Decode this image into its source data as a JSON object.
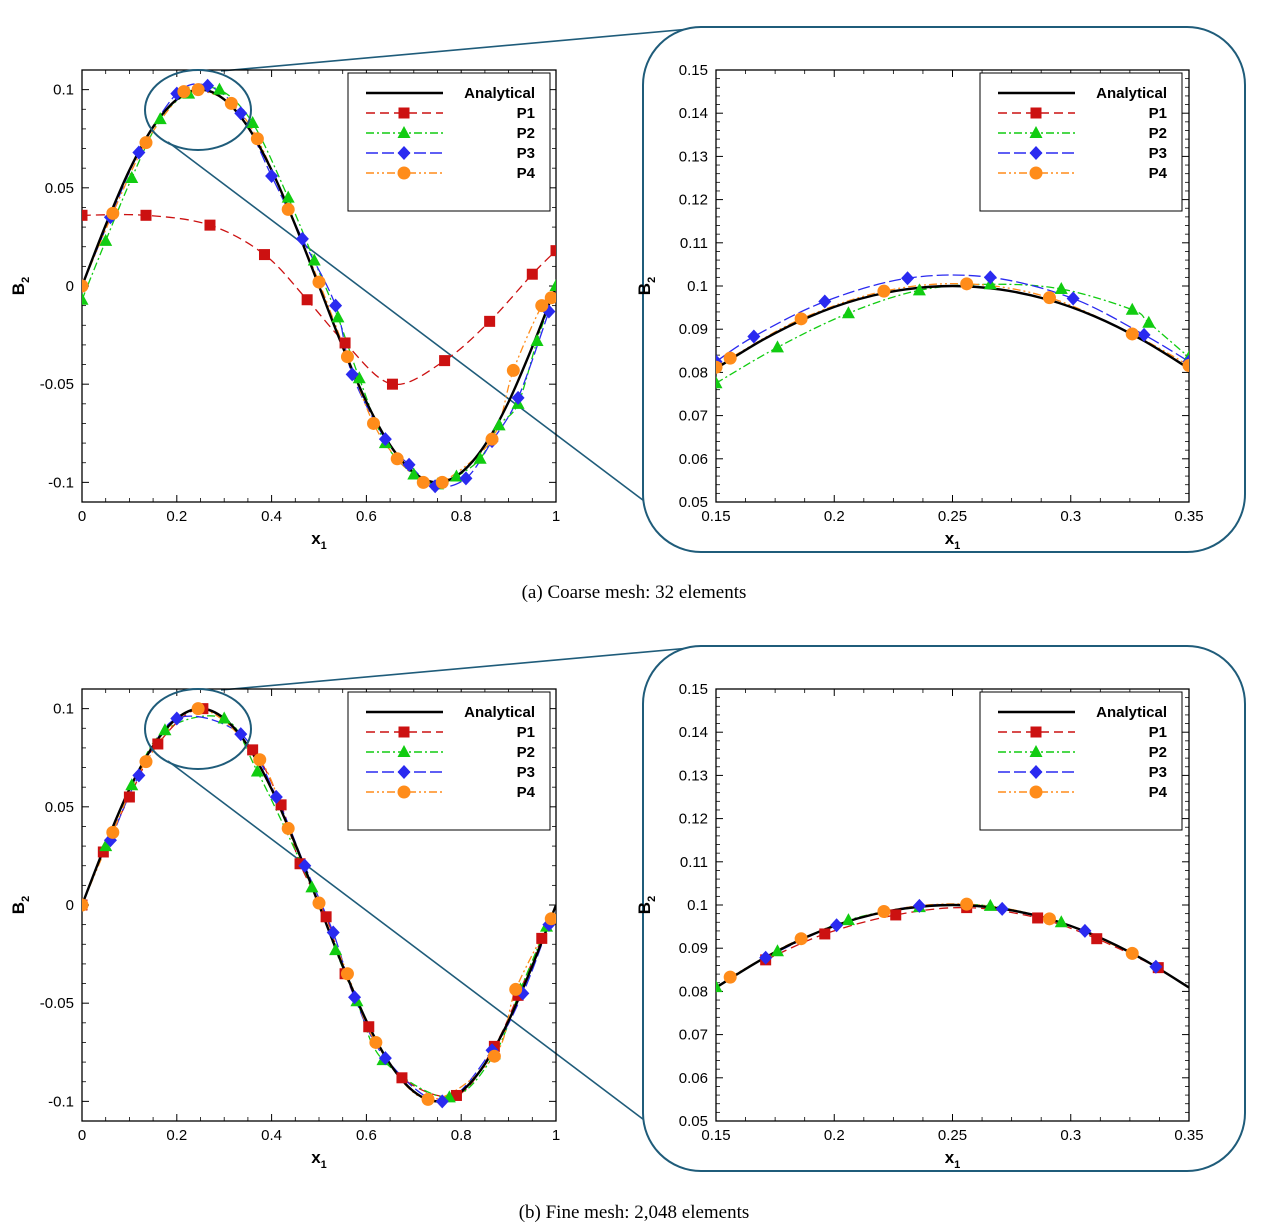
{
  "captions": {
    "a": "(a) Coarse mesh: 32 elements",
    "b": "(b) Fine mesh: 2,048 elements"
  },
  "colors": {
    "Analytical": "#000000",
    "P1": "#cc1111",
    "P2": "#11cc11",
    "P3": "#2a2af0",
    "P4": "#ff8c1a",
    "zoom": "#1f5c7a"
  },
  "chart_data": [
    {
      "id": "a-main",
      "type": "line",
      "title": "",
      "xlabel": "x",
      "xlabel_sub": "1",
      "ylabel": "B",
      "ylabel_sub": "2",
      "xlim": [
        0,
        1
      ],
      "ylim": [
        -0.11,
        0.11
      ],
      "xticks": [
        "0",
        "0.2",
        "0.4",
        "0.6",
        "0.8",
        "1"
      ],
      "xtick_values": [
        0,
        0.2,
        0.4,
        0.6,
        0.8,
        1
      ],
      "yticks": [
        "-0.1",
        "-0.05",
        "0",
        "0.05",
        "0.1"
      ],
      "ytick_values": [
        -0.1,
        -0.05,
        0,
        0.05,
        0.1
      ],
      "legend": [
        "Analytical",
        "P1",
        "P2",
        "P3",
        "P4"
      ],
      "series": [
        {
          "name": "Analytical",
          "marker": "none",
          "x": [
            0,
            0.05,
            0.1,
            0.15,
            0.2,
            0.25,
            0.3,
            0.35,
            0.4,
            0.45,
            0.5,
            0.55,
            0.6,
            0.65,
            0.7,
            0.75,
            0.8,
            0.85,
            0.9,
            0.95,
            1
          ],
          "y": [
            0,
            0.031,
            0.059,
            0.081,
            0.095,
            0.1,
            0.095,
            0.081,
            0.059,
            0.031,
            0,
            -0.031,
            -0.059,
            -0.081,
            -0.095,
            -0.1,
            -0.095,
            -0.081,
            -0.059,
            -0.031,
            0
          ]
        },
        {
          "name": "P1",
          "marker": "square",
          "x": [
            0,
            0.135,
            0.27,
            0.385,
            0.475,
            0.555,
            0.655,
            0.765,
            0.86,
            0.95,
            1
          ],
          "y": [
            0.036,
            0.036,
            0.031,
            0.016,
            -0.007,
            -0.029,
            -0.05,
            -0.038,
            -0.018,
            0.006,
            0.018
          ]
        },
        {
          "name": "P2",
          "marker": "triangle",
          "x": [
            0,
            0.05,
            0.105,
            0.165,
            0.225,
            0.29,
            0.36,
            0.435,
            0.49,
            0.54,
            0.585,
            0.64,
            0.7,
            0.75,
            0.79,
            0.84,
            0.88,
            0.92,
            0.96,
            1
          ],
          "y": [
            -0.007,
            0.023,
            0.055,
            0.085,
            0.098,
            0.1,
            0.083,
            0.045,
            0.013,
            -0.016,
            -0.047,
            -0.08,
            -0.096,
            -0.101,
            -0.097,
            -0.088,
            -0.071,
            -0.06,
            -0.028,
            0
          ]
        },
        {
          "name": "P3",
          "marker": "diamond",
          "x": [
            0,
            0.06,
            0.12,
            0.2,
            0.265,
            0.335,
            0.4,
            0.465,
            0.535,
            0.57,
            0.64,
            0.69,
            0.745,
            0.81,
            0.865,
            0.92,
            0.985
          ],
          "y": [
            0,
            0.035,
            0.068,
            0.098,
            0.102,
            0.088,
            0.056,
            0.024,
            -0.01,
            -0.045,
            -0.078,
            -0.091,
            -0.102,
            -0.098,
            -0.079,
            -0.057,
            -0.013
          ]
        },
        {
          "name": "P4",
          "marker": "circle",
          "x": [
            0,
            0.065,
            0.135,
            0.215,
            0.245,
            0.315,
            0.37,
            0.435,
            0.5,
            0.56,
            0.615,
            0.665,
            0.72,
            0.76,
            0.865,
            0.91,
            0.97,
            0.99
          ],
          "y": [
            0,
            0.037,
            0.073,
            0.099,
            0.1,
            0.093,
            0.075,
            0.039,
            0.002,
            -0.036,
            -0.07,
            -0.088,
            -0.1,
            -0.1,
            -0.078,
            -0.043,
            -0.01,
            -0.006
          ]
        }
      ]
    },
    {
      "id": "a-zoom",
      "type": "line",
      "title": "",
      "xlabel": "x",
      "xlabel_sub": "1",
      "ylabel": "B",
      "ylabel_sub": "2",
      "xlim": [
        0.15,
        0.35
      ],
      "ylim": [
        0.05,
        0.15
      ],
      "xticks": [
        "0.15",
        "0.2",
        "0.25",
        "0.3",
        "0.35"
      ],
      "xtick_values": [
        0.15,
        0.2,
        0.25,
        0.3,
        0.35
      ],
      "yticks": [
        "0.05",
        "0.06",
        "0.07",
        "0.08",
        "0.09",
        "0.1",
        "0.11",
        "0.12",
        "0.13",
        "0.14",
        "0.15"
      ],
      "ytick_values": [
        0.05,
        0.06,
        0.07,
        0.08,
        0.09,
        0.1,
        0.11,
        0.12,
        0.13,
        0.14,
        0.15
      ],
      "legend": [
        "Analytical",
        "P1",
        "P2",
        "P3",
        "P4"
      ],
      "series": [
        {
          "name": "Analytical",
          "marker": "none",
          "x": [
            0.15,
            0.17,
            0.19,
            0.21,
            0.23,
            0.25,
            0.27,
            0.29,
            0.31,
            0.33,
            0.35
          ],
          "y": [
            0.0809,
            0.0876,
            0.093,
            0.0969,
            0.0992,
            0.1,
            0.0992,
            0.0969,
            0.093,
            0.0876,
            0.0809
          ]
        },
        {
          "name": "P2",
          "marker": "triangle",
          "x": [
            0.15,
            0.176,
            0.206,
            0.236,
            0.266,
            0.296,
            0.326,
            0.333,
            0.35
          ],
          "y": [
            0.0775,
            0.0858,
            0.0937,
            0.099,
            0.1004,
            0.0993,
            0.0945,
            0.0915,
            0.0835
          ]
        },
        {
          "name": "P3",
          "marker": "diamond",
          "x": [
            0.15,
            0.166,
            0.196,
            0.231,
            0.266,
            0.301,
            0.331,
            0.35
          ],
          "y": [
            0.0825,
            0.0883,
            0.0964,
            0.1018,
            0.102,
            0.0971,
            0.0887,
            0.0825
          ]
        },
        {
          "name": "P4",
          "marker": "circle",
          "x": [
            0.15,
            0.156,
            0.186,
            0.221,
            0.256,
            0.291,
            0.326,
            0.35
          ],
          "y": [
            0.0812,
            0.0833,
            0.0924,
            0.0988,
            0.1005,
            0.0973,
            0.0889,
            0.0816
          ]
        }
      ]
    },
    {
      "id": "b-main",
      "type": "line",
      "title": "",
      "xlabel": "x",
      "xlabel_sub": "1",
      "ylabel": "B",
      "ylabel_sub": "2",
      "xlim": [
        0,
        1
      ],
      "ylim": [
        -0.11,
        0.11
      ],
      "xticks": [
        "0",
        "0.2",
        "0.4",
        "0.6",
        "0.8",
        "1"
      ],
      "xtick_values": [
        0,
        0.2,
        0.4,
        0.6,
        0.8,
        1
      ],
      "yticks": [
        "-0.1",
        "-0.05",
        "0",
        "0.05",
        "0.1"
      ],
      "ytick_values": [
        -0.1,
        -0.05,
        0,
        0.05,
        0.1
      ],
      "legend": [
        "Analytical",
        "P1",
        "P2",
        "P3",
        "P4"
      ],
      "series": [
        {
          "name": "Analytical",
          "marker": "none",
          "x": [
            0,
            0.05,
            0.1,
            0.15,
            0.2,
            0.25,
            0.3,
            0.35,
            0.4,
            0.45,
            0.5,
            0.55,
            0.6,
            0.65,
            0.7,
            0.75,
            0.8,
            0.85,
            0.9,
            0.95,
            1
          ],
          "y": [
            0,
            0.031,
            0.059,
            0.081,
            0.095,
            0.1,
            0.095,
            0.081,
            0.059,
            0.031,
            0,
            -0.031,
            -0.059,
            -0.081,
            -0.095,
            -0.1,
            -0.095,
            -0.081,
            -0.059,
            -0.031,
            0
          ]
        },
        {
          "name": "P1",
          "marker": "square",
          "x": [
            0,
            0.045,
            0.1,
            0.16,
            0.255,
            0.36,
            0.42,
            0.46,
            0.515,
            0.555,
            0.605,
            0.675,
            0.79,
            0.87,
            0.92,
            0.97
          ],
          "y": [
            0,
            0.027,
            0.055,
            0.082,
            0.1,
            0.079,
            0.051,
            0.021,
            -0.006,
            -0.035,
            -0.062,
            -0.088,
            -0.097,
            -0.072,
            -0.046,
            -0.017
          ]
        },
        {
          "name": "P2",
          "marker": "triangle",
          "x": [
            0.05,
            0.105,
            0.175,
            0.3,
            0.37,
            0.485,
            0.535,
            0.58,
            0.635,
            0.775,
            0.87,
            0.925,
            0.98
          ],
          "y": [
            0.03,
            0.061,
            0.089,
            0.095,
            0.068,
            0.009,
            -0.023,
            -0.049,
            -0.079,
            -0.098,
            -0.076,
            -0.043,
            -0.011
          ]
        },
        {
          "name": "P3",
          "marker": "diamond",
          "x": [
            0.06,
            0.12,
            0.2,
            0.335,
            0.41,
            0.47,
            0.53,
            0.575,
            0.64,
            0.76,
            0.865,
            0.93,
            0.985
          ],
          "y": [
            0.033,
            0.066,
            0.095,
            0.087,
            0.055,
            0.02,
            -0.014,
            -0.047,
            -0.078,
            -0.1,
            -0.074,
            -0.045,
            -0.01
          ]
        },
        {
          "name": "P4",
          "marker": "circle",
          "x": [
            0,
            0.065,
            0.135,
            0.245,
            0.375,
            0.435,
            0.5,
            0.56,
            0.62,
            0.73,
            0.87,
            0.915,
            0.99
          ],
          "y": [
            0,
            0.037,
            0.073,
            0.1,
            0.074,
            0.039,
            0.001,
            -0.035,
            -0.07,
            -0.099,
            -0.077,
            -0.043,
            -0.007
          ]
        }
      ]
    },
    {
      "id": "b-zoom",
      "type": "line",
      "title": "",
      "xlabel": "x",
      "xlabel_sub": "1",
      "ylabel": "B",
      "ylabel_sub": "2",
      "xlim": [
        0.15,
        0.35
      ],
      "ylim": [
        0.05,
        0.15
      ],
      "xticks": [
        "0.15",
        "0.2",
        "0.25",
        "0.3",
        "0.35"
      ],
      "xtick_values": [
        0.15,
        0.2,
        0.25,
        0.3,
        0.35
      ],
      "yticks": [
        "0.05",
        "0.06",
        "0.07",
        "0.08",
        "0.09",
        "0.1",
        "0.11",
        "0.12",
        "0.13",
        "0.14",
        "0.15"
      ],
      "ytick_values": [
        0.05,
        0.06,
        0.07,
        0.08,
        0.09,
        0.1,
        0.11,
        0.12,
        0.13,
        0.14,
        0.15
      ],
      "legend": [
        "Analytical",
        "P1",
        "P2",
        "P3",
        "P4"
      ],
      "series": [
        {
          "name": "Analytical",
          "marker": "none",
          "x": [
            0.15,
            0.17,
            0.19,
            0.21,
            0.23,
            0.25,
            0.27,
            0.29,
            0.31,
            0.33,
            0.35
          ],
          "y": [
            0.0809,
            0.0876,
            0.093,
            0.0969,
            0.0992,
            0.1,
            0.0992,
            0.0969,
            0.093,
            0.0876,
            0.0809
          ]
        },
        {
          "name": "P1",
          "marker": "square",
          "x": [
            0.171,
            0.196,
            0.226,
            0.256,
            0.286,
            0.311,
            0.337
          ],
          "y": [
            0.0873,
            0.0933,
            0.0977,
            0.0994,
            0.097,
            0.0922,
            0.0855
          ]
        },
        {
          "name": "P2",
          "marker": "triangle",
          "x": [
            0.15,
            0.176,
            0.206,
            0.236,
            0.266,
            0.296
          ],
          "y": [
            0.081,
            0.0893,
            0.0965,
            0.0995,
            0.0998,
            0.096
          ]
        },
        {
          "name": "P3",
          "marker": "diamond",
          "x": [
            0.171,
            0.201,
            0.236,
            0.271,
            0.306,
            0.336
          ],
          "y": [
            0.0878,
            0.0953,
            0.0998,
            0.0991,
            0.094,
            0.0857
          ]
        },
        {
          "name": "P4",
          "marker": "circle",
          "x": [
            0.156,
            0.186,
            0.221,
            0.256,
            0.291,
            0.326
          ],
          "y": [
            0.0833,
            0.0922,
            0.0985,
            0.1002,
            0.0968,
            0.0888
          ]
        }
      ]
    }
  ]
}
